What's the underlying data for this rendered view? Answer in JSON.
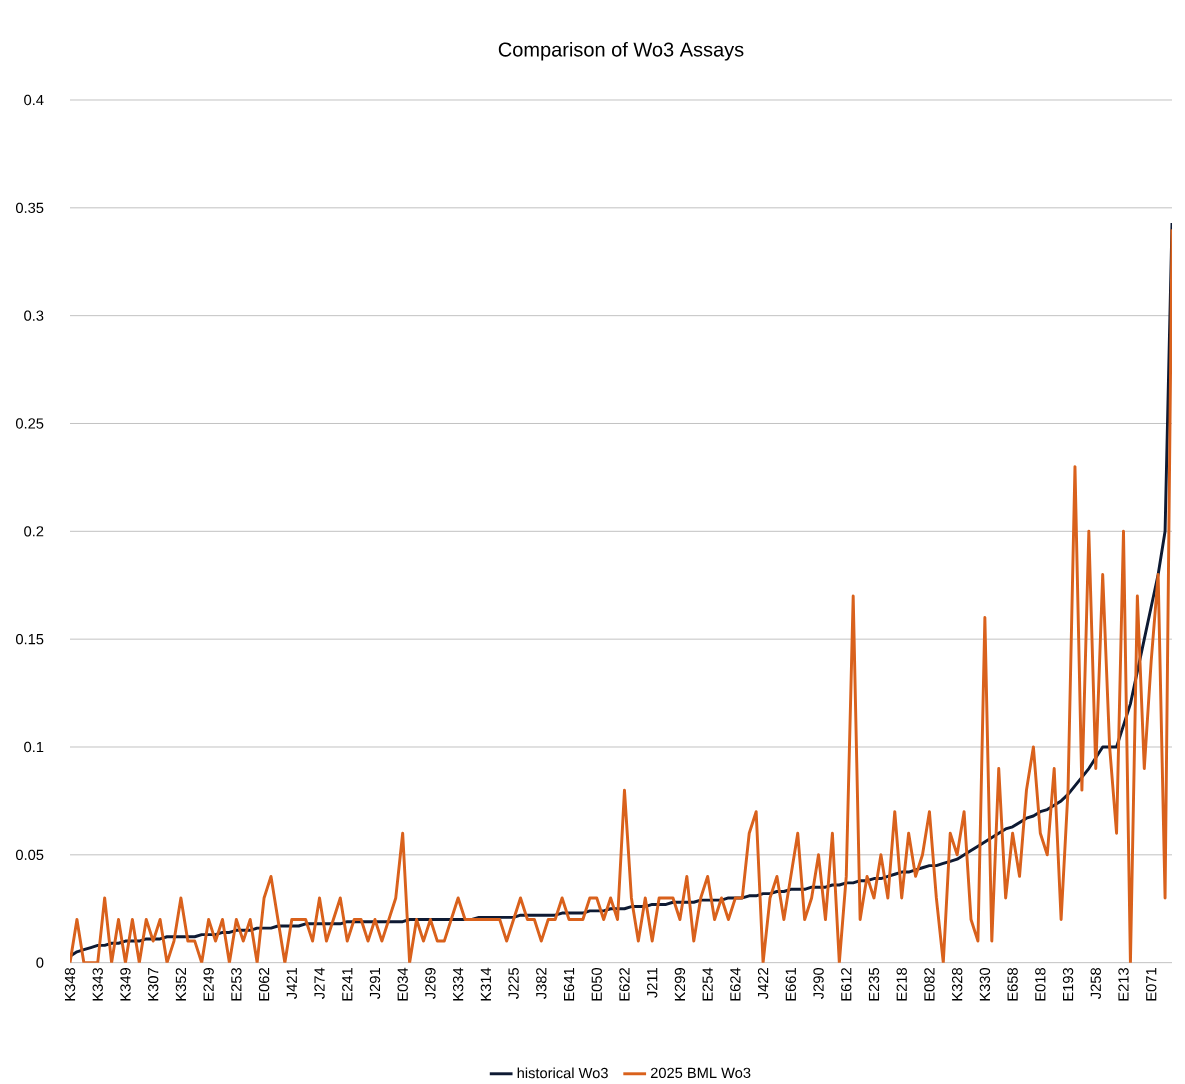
{
  "chart_data": {
    "type": "line",
    "title": "Comparison of Wo3 Assays",
    "categories": [
      "K348",
      null,
      null,
      null,
      "K343",
      null,
      null,
      null,
      "K349",
      null,
      null,
      null,
      "K307",
      null,
      null,
      null,
      "K352",
      null,
      null,
      null,
      "E249",
      null,
      null,
      null,
      "E253",
      null,
      null,
      null,
      "E062",
      null,
      null,
      null,
      "J421",
      null,
      null,
      null,
      "J274",
      null,
      null,
      null,
      "E241",
      null,
      null,
      null,
      "J291",
      null,
      null,
      null,
      "E034",
      null,
      null,
      null,
      "J269",
      null,
      null,
      null,
      "K334",
      null,
      null,
      null,
      "K314",
      null,
      null,
      null,
      "J225",
      null,
      null,
      null,
      "J382",
      null,
      null,
      null,
      "E641",
      null,
      null,
      null,
      "E050",
      null,
      null,
      null,
      "E622",
      null,
      null,
      null,
      "J211",
      null,
      null,
      null,
      "K299",
      null,
      null,
      null,
      "E254",
      null,
      null,
      null,
      "E624",
      null,
      null,
      null,
      "J422",
      null,
      null,
      null,
      "E661",
      null,
      null,
      null,
      "J290",
      null,
      null,
      null,
      "E612",
      null,
      null,
      null,
      "E235",
      null,
      null,
      null,
      "E218",
      null,
      null,
      null,
      "E082",
      null,
      null,
      null,
      "K328",
      null,
      null,
      null,
      "K330",
      null,
      null,
      null,
      "E658",
      null,
      null,
      null,
      "E018",
      null,
      null,
      null,
      "E193",
      null,
      null,
      null,
      "J258",
      null,
      null,
      null,
      "E213",
      null,
      null,
      null,
      "E071",
      null,
      null,
      null
    ],
    "series": [
      {
        "name": "historical Wo3",
        "color": "#0e1a33",
        "values": [
          0.003,
          0.005,
          0.006,
          0.007,
          0.008,
          0.008,
          0.009,
          0.009,
          0.01,
          0.01,
          0.01,
          0.011,
          0.011,
          0.011,
          0.012,
          0.012,
          0.012,
          0.012,
          0.012,
          0.013,
          0.013,
          0.013,
          0.014,
          0.014,
          0.015,
          0.015,
          0.015,
          0.016,
          0.016,
          0.016,
          0.017,
          0.017,
          0.017,
          0.017,
          0.018,
          0.018,
          0.018,
          0.018,
          0.018,
          0.018,
          0.019,
          0.019,
          0.019,
          0.019,
          0.019,
          0.019,
          0.019,
          0.019,
          0.019,
          0.02,
          0.02,
          0.02,
          0.02,
          0.02,
          0.02,
          0.02,
          0.02,
          0.02,
          0.02,
          0.021,
          0.021,
          0.021,
          0.021,
          0.021,
          0.021,
          0.022,
          0.022,
          0.022,
          0.022,
          0.022,
          0.022,
          0.023,
          0.023,
          0.023,
          0.023,
          0.024,
          0.024,
          0.024,
          0.025,
          0.025,
          0.025,
          0.026,
          0.026,
          0.026,
          0.027,
          0.027,
          0.027,
          0.028,
          0.028,
          0.028,
          0.028,
          0.029,
          0.029,
          0.029,
          0.029,
          0.03,
          0.03,
          0.03,
          0.031,
          0.031,
          0.032,
          0.032,
          0.033,
          0.033,
          0.034,
          0.034,
          0.034,
          0.035,
          0.035,
          0.035,
          0.036,
          0.036,
          0.037,
          0.037,
          0.038,
          0.038,
          0.039,
          0.039,
          0.04,
          0.041,
          0.042,
          0.042,
          0.043,
          0.044,
          0.045,
          0.045,
          0.046,
          0.047,
          0.048,
          0.05,
          0.052,
          0.054,
          0.056,
          0.058,
          0.06,
          0.062,
          0.063,
          0.065,
          0.067,
          0.068,
          0.07,
          0.071,
          0.073,
          0.075,
          0.078,
          0.082,
          0.086,
          0.09,
          0.095,
          0.1,
          0.1,
          0.1,
          0.11,
          0.12,
          0.135,
          0.15,
          0.165,
          0.18,
          0.2,
          0.343
        ]
      },
      {
        "name": "2025 BML Wo3",
        "color": "#d9611c",
        "values": [
          0,
          0.02,
          0,
          0,
          0,
          0.03,
          0,
          0.02,
          0,
          0.02,
          0,
          0.02,
          0.01,
          0.02,
          0,
          0.01,
          0.03,
          0.01,
          0.01,
          0,
          0.02,
          0.01,
          0.02,
          0,
          0.02,
          0.01,
          0.02,
          0,
          0.03,
          0.04,
          0.02,
          0,
          0.02,
          0.02,
          0.02,
          0.01,
          0.03,
          0.01,
          0.02,
          0.03,
          0.01,
          0.02,
          0.02,
          0.01,
          0.02,
          0.01,
          0.02,
          0.03,
          0.06,
          0,
          0.02,
          0.01,
          0.02,
          0.01,
          0.01,
          0.02,
          0.03,
          0.02,
          0.02,
          0.02,
          0.02,
          0.02,
          0.02,
          0.01,
          0.02,
          0.03,
          0.02,
          0.02,
          0.01,
          0.02,
          0.02,
          0.03,
          0.02,
          0.02,
          0.02,
          0.03,
          0.03,
          0.02,
          0.03,
          0.02,
          0.08,
          0.03,
          0.01,
          0.03,
          0.01,
          0.03,
          0.03,
          0.03,
          0.02,
          0.04,
          0.01,
          0.03,
          0.04,
          0.02,
          0.03,
          0.02,
          0.03,
          0.03,
          0.06,
          0.07,
          0,
          0.03,
          0.04,
          0.02,
          0.04,
          0.06,
          0.02,
          0.03,
          0.05,
          0.02,
          0.06,
          0,
          0.04,
          0.17,
          0.02,
          0.04,
          0.03,
          0.05,
          0.03,
          0.07,
          0.03,
          0.06,
          0.04,
          0.05,
          0.07,
          0.03,
          0,
          0.06,
          0.05,
          0.07,
          0.02,
          0.01,
          0.16,
          0.01,
          0.09,
          0.03,
          0.06,
          0.04,
          0.08,
          0.1,
          0.06,
          0.05,
          0.09,
          0.02,
          0.08,
          0.23,
          0.08,
          0.2,
          0.09,
          0.18,
          0.1,
          0.06,
          0.2,
          0,
          0.17,
          0.09,
          0.14,
          0.18,
          0.03,
          0.34
        ]
      }
    ],
    "ylim": [
      0,
      0.4
    ],
    "yticks": [
      0,
      0.05,
      0.1,
      0.15,
      0.2,
      0.25,
      0.3,
      0.35,
      0.4
    ],
    "grid": "y",
    "legend": "bottom",
    "marker": "none",
    "line_style": "solid"
  }
}
